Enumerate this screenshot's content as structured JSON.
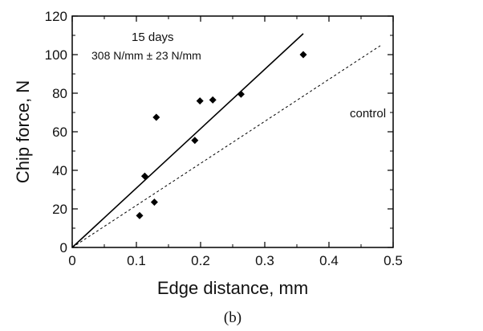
{
  "chart_data": {
    "type": "scatter",
    "xlabel": "Edge distance, mm",
    "ylabel": "Chip force, N",
    "xlim": [
      0,
      0.5
    ],
    "ylim": [
      0,
      120
    ],
    "x_ticks": [
      "0",
      "0.1",
      "0.2",
      "0.3",
      "0.4",
      "0.5"
    ],
    "y_ticks": [
      "0",
      "20",
      "40",
      "60",
      "80",
      "100",
      "120"
    ],
    "grid": false,
    "points": [
      {
        "x": 0.105,
        "y": 16.5
      },
      {
        "x": 0.113,
        "y": 37.0
      },
      {
        "x": 0.128,
        "y": 23.5
      },
      {
        "x": 0.131,
        "y": 67.5
      },
      {
        "x": 0.191,
        "y": 55.5
      },
      {
        "x": 0.199,
        "y": 76.0
      },
      {
        "x": 0.219,
        "y": 76.5
      },
      {
        "x": 0.263,
        "y": 79.5
      },
      {
        "x": 0.36,
        "y": 100.0
      }
    ],
    "fit_line": {
      "slope": 308,
      "x_end": 0.36,
      "style": "solid"
    },
    "control_line": {
      "slope": 218,
      "x_end": 0.48,
      "style": "dashed"
    },
    "annotations": {
      "days": "15 days",
      "stiffness": "308 N/mm ± 23 N/mm",
      "control": "control"
    },
    "caption": "(b)"
  }
}
